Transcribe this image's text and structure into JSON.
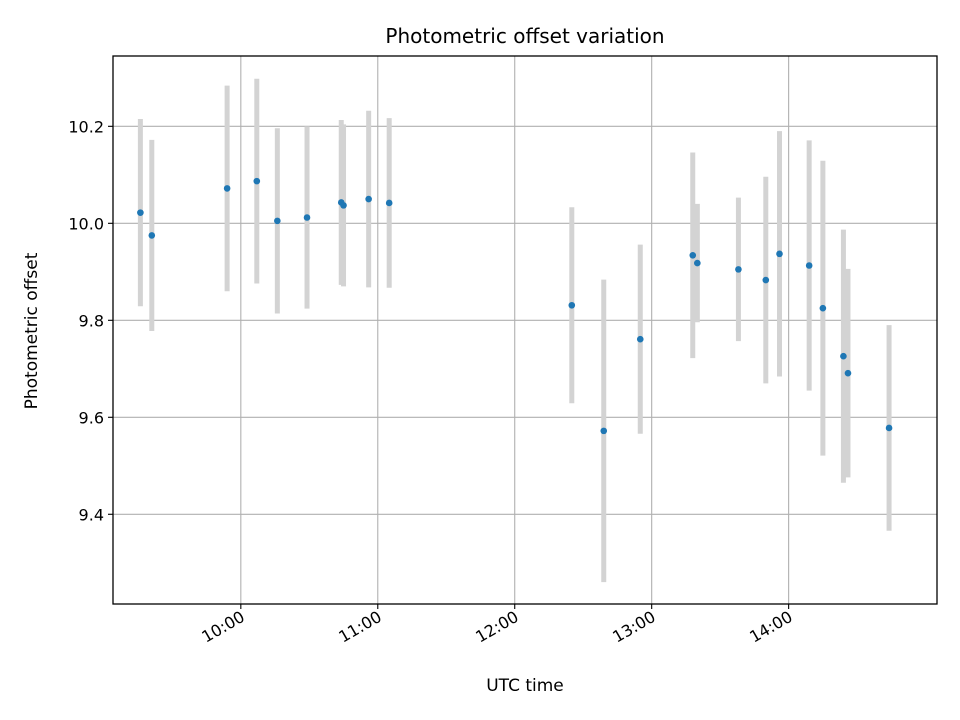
{
  "chart_data": {
    "type": "scatter",
    "title": "Photometric offset variation",
    "xlabel": "UTC time",
    "ylabel": "Photometric offset",
    "x_ticks": [
      "10:00",
      "11:00",
      "12:00",
      "13:00",
      "14:00"
    ],
    "y_ticks": [
      "9.4",
      "9.6",
      "9.8",
      "10.0",
      "10.2"
    ],
    "xlim": [
      "09:04",
      "15:05"
    ],
    "ylim": [
      9.215,
      10.345
    ],
    "grid": true,
    "colors": {
      "point": "#1f77b4",
      "errorbar": "#d3d3d3",
      "grid": "#b0b0b0"
    },
    "series": [
      {
        "points": [
          {
            "x": "09:16",
            "y": 10.022,
            "err": 0.193
          },
          {
            "x": "09:21",
            "y": 9.975,
            "err": 0.197
          },
          {
            "x": "09:54",
            "y": 10.072,
            "err": 0.212
          },
          {
            "x": "10:07",
            "y": 10.087,
            "err": 0.211
          },
          {
            "x": "10:16",
            "y": 10.005,
            "err": 0.191
          },
          {
            "x": "10:29",
            "y": 10.012,
            "err": 0.188
          },
          {
            "x": "10:44",
            "y": 10.043,
            "err": 0.17
          },
          {
            "x": "10:45",
            "y": 10.037,
            "err": 0.167
          },
          {
            "x": "10:56",
            "y": 10.05,
            "err": 0.182
          },
          {
            "x": "11:05",
            "y": 10.042,
            "err": 0.175
          },
          {
            "x": "12:25",
            "y": 9.831,
            "err": 0.202
          },
          {
            "x": "12:39",
            "y": 9.572,
            "err": 0.312
          },
          {
            "x": "12:55",
            "y": 9.761,
            "err": 0.195
          },
          {
            "x": "13:18",
            "y": 9.934,
            "err": 0.212
          },
          {
            "x": "13:20",
            "y": 9.918,
            "err": 0.122
          },
          {
            "x": "13:38",
            "y": 9.905,
            "err": 0.148
          },
          {
            "x": "13:50",
            "y": 9.883,
            "err": 0.213
          },
          {
            "x": "13:56",
            "y": 9.937,
            "err": 0.253
          },
          {
            "x": "14:09",
            "y": 9.913,
            "err": 0.258
          },
          {
            "x": "14:15",
            "y": 9.825,
            "err": 0.304
          },
          {
            "x": "14:24",
            "y": 9.726,
            "err": 0.261
          },
          {
            "x": "14:26",
            "y": 9.691,
            "err": 0.215
          },
          {
            "x": "14:44",
            "y": 9.578,
            "err": 0.212
          }
        ]
      }
    ]
  }
}
